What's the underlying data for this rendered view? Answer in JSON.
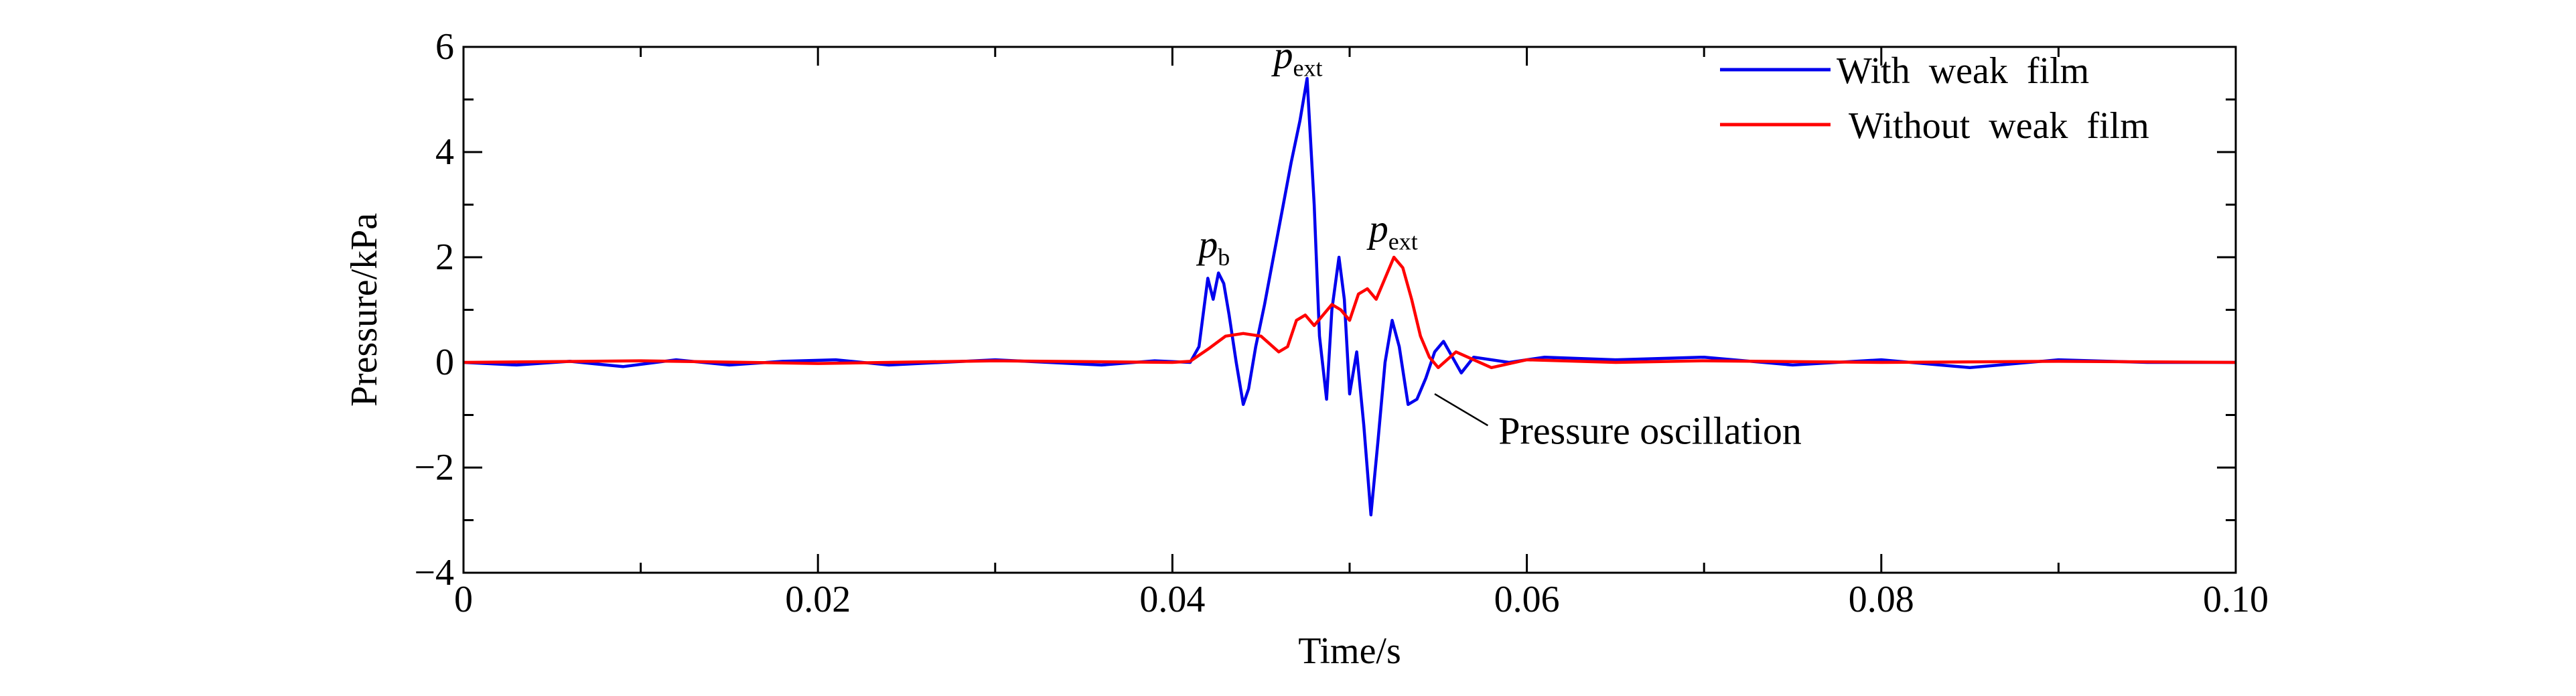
{
  "chart_data": {
    "type": "line",
    "xlabel": "Time/s",
    "ylabel": "Pressure/kPa",
    "xlim": [
      0,
      0.1
    ],
    "ylim": [
      -4,
      6
    ],
    "xticks": [
      0,
      0.02,
      0.04,
      0.06,
      0.08,
      0.1
    ],
    "xtick_labels": [
      "0",
      "0.02",
      "0.04",
      "0.06",
      "0.08",
      "0.10"
    ],
    "yticks": [
      -4,
      -2,
      0,
      2,
      4,
      6
    ],
    "ytick_labels": [
      "−4",
      "−2",
      "0",
      "2",
      "4",
      "6"
    ],
    "legend_position": "top-right",
    "series": [
      {
        "name": "With  weak  film",
        "color": "#0000ee",
        "x": [
          0,
          0.003,
          0.006,
          0.009,
          0.012,
          0.015,
          0.018,
          0.021,
          0.024,
          0.027,
          0.03,
          0.033,
          0.036,
          0.039,
          0.041,
          0.0415,
          0.042,
          0.0423,
          0.0426,
          0.0429,
          0.0432,
          0.0436,
          0.044,
          0.0443,
          0.0447,
          0.0452,
          0.0457,
          0.0462,
          0.0467,
          0.0472,
          0.0476,
          0.048,
          0.0483,
          0.0487,
          0.049,
          0.0494,
          0.0497,
          0.05,
          0.0504,
          0.0508,
          0.0512,
          0.0516,
          0.052,
          0.0524,
          0.0528,
          0.0533,
          0.0538,
          0.0543,
          0.0548,
          0.0553,
          0.0558,
          0.0563,
          0.057,
          0.059,
          0.061,
          0.065,
          0.07,
          0.075,
          0.08,
          0.085,
          0.09,
          0.095,
          0.1
        ],
        "y": [
          0,
          -0.05,
          0.02,
          -0.08,
          0.05,
          -0.05,
          0.02,
          0.05,
          -0.05,
          0,
          0.05,
          0,
          -0.05,
          0.03,
          0,
          0.3,
          1.6,
          1.2,
          1.7,
          1.5,
          0.9,
          0,
          -0.8,
          -0.5,
          0.3,
          1.1,
          2.0,
          2.9,
          3.8,
          4.6,
          5.4,
          3.0,
          0.5,
          -0.7,
          1.0,
          2.0,
          1.2,
          -0.6,
          0.2,
          -1.2,
          -2.9,
          -1.5,
          0,
          0.8,
          0.3,
          -0.8,
          -0.7,
          -0.3,
          0.2,
          0.4,
          0.1,
          -0.2,
          0.1,
          0,
          0.1,
          0.05,
          0.1,
          -0.05,
          0.05,
          -0.1,
          0.05,
          0,
          0
        ]
      },
      {
        "name": "Without  weak  film",
        "color": "#ff0000",
        "x": [
          0,
          0.01,
          0.02,
          0.03,
          0.04,
          0.041,
          0.042,
          0.043,
          0.044,
          0.045,
          0.046,
          0.0465,
          0.047,
          0.0475,
          0.048,
          0.0485,
          0.049,
          0.0495,
          0.05,
          0.0505,
          0.051,
          0.0515,
          0.052,
          0.0525,
          0.053,
          0.0535,
          0.054,
          0.0545,
          0.055,
          0.0555,
          0.056,
          0.057,
          0.058,
          0.06,
          0.065,
          0.07,
          0.08,
          0.09,
          0.1
        ],
        "y": [
          0,
          0.03,
          -0.02,
          0.03,
          0,
          0.02,
          0.25,
          0.5,
          0.55,
          0.5,
          0.2,
          0.3,
          0.8,
          0.9,
          0.7,
          0.9,
          1.1,
          1.0,
          0.8,
          1.3,
          1.4,
          1.2,
          1.6,
          2.0,
          1.8,
          1.2,
          0.5,
          0.1,
          -0.1,
          0.05,
          0.2,
          0.05,
          -0.1,
          0.05,
          0,
          0.03,
          0,
          0.02,
          0
        ]
      }
    ],
    "annotations": [
      {
        "text": "p",
        "sub": "b",
        "x": 0.0426,
        "y": 2.0
      },
      {
        "text": "p",
        "sub": "ext",
        "x": 0.0473,
        "y": 5.6
      },
      {
        "text": "p",
        "sub": "ext",
        "x": 0.0526,
        "y": 2.3
      },
      {
        "text": "Pressure oscillation"
      }
    ]
  }
}
